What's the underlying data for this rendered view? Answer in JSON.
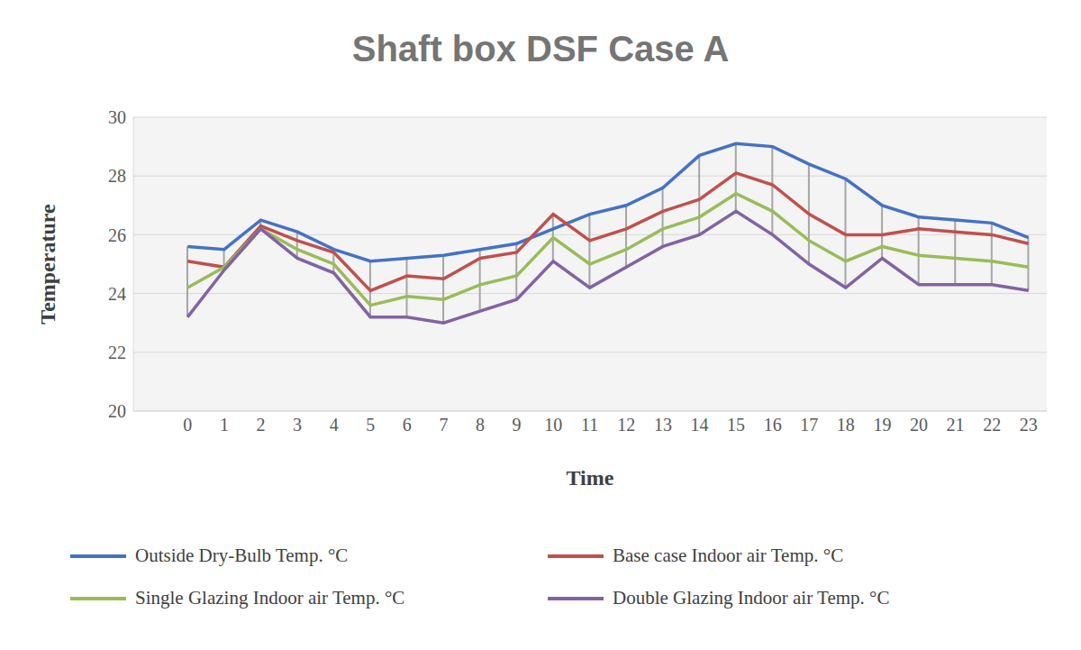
{
  "chart_data": {
    "type": "line",
    "title": "Shaft box DSF Case A",
    "x_label": "Time",
    "y_label": "Temperature",
    "categories": [
      0,
      1,
      2,
      3,
      4,
      5,
      6,
      7,
      8,
      9,
      10,
      11,
      12,
      13,
      14,
      15,
      16,
      17,
      18,
      19,
      20,
      21,
      22,
      23
    ],
    "series": [
      {
        "name": "Outside Dry-Bulb Temp. °C",
        "color": "#4472c4",
        "values": [
          25.6,
          25.5,
          26.5,
          26.1,
          25.5,
          25.1,
          25.2,
          25.3,
          25.5,
          25.7,
          26.2,
          26.7,
          27.0,
          27.6,
          28.7,
          29.1,
          29.0,
          28.4,
          27.9,
          27.0,
          26.6,
          26.5,
          26.4,
          25.9
        ]
      },
      {
        "name": "Base case Indoor air Temp. °C",
        "color": "#c0504d",
        "values": [
          25.1,
          24.9,
          26.3,
          25.8,
          25.4,
          24.1,
          24.6,
          24.5,
          25.2,
          25.4,
          26.7,
          25.8,
          26.2,
          26.8,
          27.2,
          28.1,
          27.7,
          26.7,
          26.0,
          26.0,
          26.2,
          26.1,
          26.0,
          25.7
        ]
      },
      {
        "name": "Single Glazing Indoor air Temp. °C",
        "color": "#9bbb59",
        "values": [
          24.2,
          24.9,
          26.2,
          25.5,
          25.0,
          23.6,
          23.9,
          23.8,
          24.3,
          24.6,
          25.9,
          25.0,
          25.5,
          26.2,
          26.6,
          27.4,
          26.8,
          25.8,
          25.1,
          25.6,
          25.3,
          25.2,
          25.1,
          24.9
        ]
      },
      {
        "name": "Double Glazing Indoor air Temp. °C",
        "color": "#8064a2",
        "values": [
          23.2,
          24.8,
          26.2,
          25.2,
          24.7,
          23.2,
          23.2,
          23.0,
          23.4,
          23.8,
          25.1,
          24.2,
          24.9,
          25.6,
          26.0,
          26.8,
          26.0,
          25.0,
          24.2,
          25.2,
          24.3,
          24.3,
          24.3,
          24.1
        ]
      }
    ],
    "ylim": [
      20,
      30
    ],
    "yticks": [
      20,
      22,
      24,
      26,
      28,
      30
    ],
    "grid": true,
    "legend": "bottom"
  }
}
